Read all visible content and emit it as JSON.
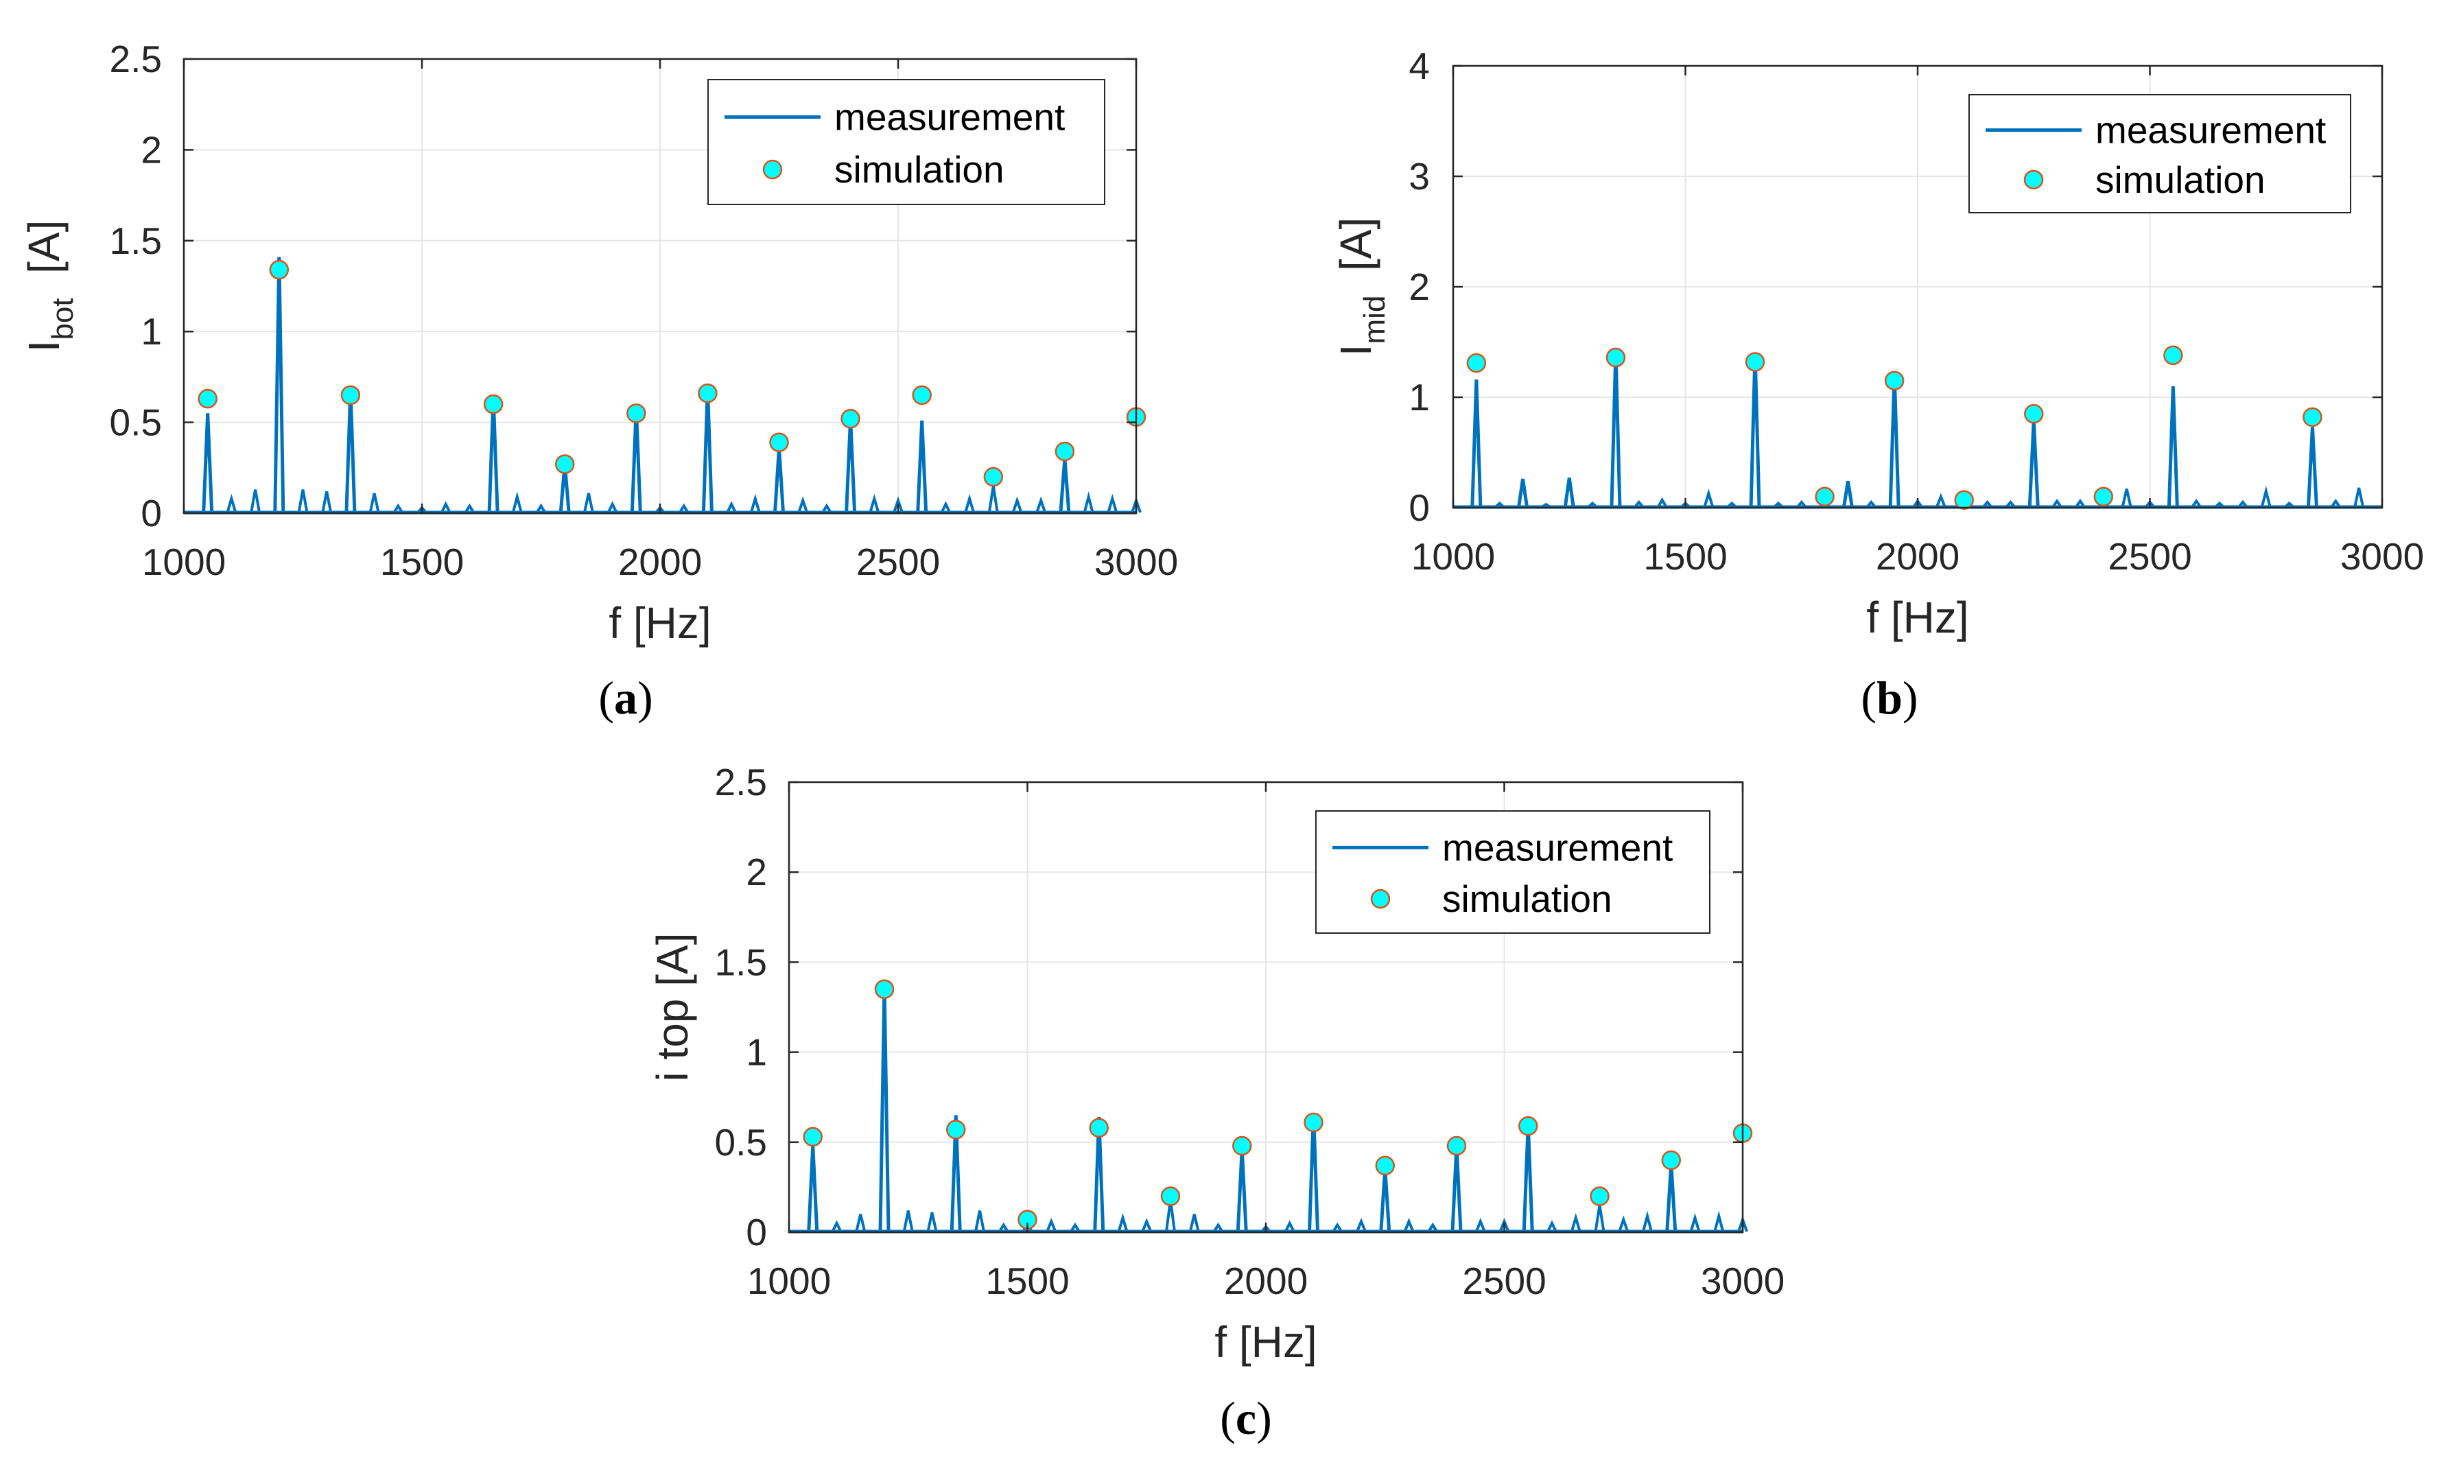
{
  "colors": {
    "measurement": "#0072BD",
    "marker_fill": "#00FFFF",
    "marker_edge": "#D95319",
    "grid": "#E6E6E6",
    "axis": "#262626"
  },
  "chart_data": [
    {
      "id": "a",
      "type": "line",
      "caption_label": "a",
      "ylabel_main": "I",
      "ylabel_sub": "bot",
      "ylabel_unit": "[A]",
      "xlabel": "f [Hz]",
      "xlim": [
        1000,
        3000
      ],
      "ylim": [
        0,
        2.5
      ],
      "xticks": [
        1000,
        1500,
        2000,
        2500,
        3000
      ],
      "yticks": [
        0,
        0.5,
        1,
        1.5,
        2,
        2.5
      ],
      "ytick_labels": [
        "0",
        "0.5",
        "1",
        "1.5",
        "2",
        "2.5"
      ],
      "grid": true,
      "legend": {
        "position": "top-right",
        "entries": [
          "measurement",
          "simulation"
        ]
      },
      "series": [
        {
          "name": "measurement",
          "kind": "stem",
          "x": [
            1050,
            1100,
            1150,
            1200,
            1250,
            1300,
            1350,
            1400,
            1450,
            1500,
            1550,
            1600,
            1650,
            1700,
            1750,
            1800,
            1850,
            1900,
            1950,
            2000,
            2050,
            2100,
            2150,
            2200,
            2250,
            2300,
            2350,
            2400,
            2450,
            2500,
            2550,
            2600,
            2650,
            2700,
            2750,
            2800,
            2850,
            2900,
            2950,
            3000
          ],
          "y": [
            0.55,
            0.08,
            0.13,
            1.41,
            0.13,
            0.12,
            0.68,
            0.11,
            0.04,
            0.03,
            0.05,
            0.04,
            0.64,
            0.09,
            0.04,
            0.27,
            0.11,
            0.05,
            0.58,
            0.03,
            0.04,
            0.69,
            0.05,
            0.08,
            0.36,
            0.07,
            0.04,
            0.52,
            0.08,
            0.07,
            0.51,
            0.05,
            0.08,
            0.15,
            0.07,
            0.07,
            0.3,
            0.09,
            0.08,
            0.07
          ]
        },
        {
          "name": "simulation",
          "kind": "marker",
          "x": [
            1050,
            1200,
            1350,
            1650,
            1800,
            1950,
            2100,
            2250,
            2400,
            2550,
            2700,
            2850,
            3000
          ],
          "y": [
            0.63,
            1.34,
            0.65,
            0.6,
            0.27,
            0.55,
            0.66,
            0.39,
            0.52,
            0.65,
            0.2,
            0.34,
            0.53
          ]
        }
      ]
    },
    {
      "id": "b",
      "type": "line",
      "caption_label": "b",
      "ylabel_main": "I",
      "ylabel_sub": "mid",
      "ylabel_unit": "[A]",
      "xlabel": "f [Hz]",
      "xlim": [
        1000,
        3000
      ],
      "ylim": [
        0,
        4
      ],
      "xticks": [
        1000,
        1500,
        2000,
        2500,
        3000
      ],
      "yticks": [
        0,
        1,
        2,
        3,
        4
      ],
      "ytick_labels": [
        "0",
        "1",
        "2",
        "3",
        "4"
      ],
      "grid": true,
      "legend": {
        "position": "top-right",
        "entries": [
          "measurement",
          "simulation"
        ]
      },
      "series": [
        {
          "name": "measurement",
          "kind": "stem",
          "x": [
            1050,
            1100,
            1150,
            1200,
            1250,
            1300,
            1350,
            1400,
            1450,
            1500,
            1550,
            1600,
            1650,
            1700,
            1750,
            1800,
            1850,
            1900,
            1950,
            2000,
            2050,
            2100,
            2150,
            2200,
            2250,
            2300,
            2350,
            2400,
            2450,
            2500,
            2550,
            2600,
            2650,
            2700,
            2750,
            2800,
            2850,
            2900,
            2950
          ],
          "y": [
            1.16,
            0.04,
            0.26,
            0.03,
            0.27,
            0.04,
            1.41,
            0.05,
            0.07,
            0.04,
            0.13,
            0.04,
            1.4,
            0.04,
            0.05,
            0.05,
            0.24,
            0.05,
            1.2,
            0.06,
            0.1,
            0.04,
            0.05,
            0.05,
            0.79,
            0.06,
            0.06,
            0.06,
            0.17,
            0.05,
            1.1,
            0.06,
            0.04,
            0.05,
            0.15,
            0.04,
            0.73,
            0.06,
            0.18
          ]
        },
        {
          "name": "simulation",
          "kind": "marker",
          "x": [
            1050,
            1350,
            1650,
            1800,
            1950,
            2100,
            2250,
            2400,
            2550,
            2850
          ],
          "y": [
            1.31,
            1.36,
            1.32,
            0.1,
            1.15,
            0.07,
            0.85,
            0.1,
            1.38,
            0.82
          ]
        }
      ]
    },
    {
      "id": "c",
      "type": "line",
      "caption_label": "c",
      "ylabel_main": "i top  [A]",
      "ylabel_sub": "",
      "ylabel_unit": "",
      "xlabel": "f [Hz]",
      "xlim": [
        1000,
        3000
      ],
      "ylim": [
        0,
        2.5
      ],
      "xticks": [
        1000,
        1500,
        2000,
        2500,
        3000
      ],
      "yticks": [
        0,
        0.5,
        1,
        1.5,
        2,
        2.5
      ],
      "ytick_labels": [
        "0",
        "0.5",
        "1",
        "1.5",
        "2",
        "2.5"
      ],
      "grid": true,
      "legend": {
        "position": "top-right",
        "entries": [
          "measurement",
          "simulation"
        ]
      },
      "series": [
        {
          "name": "measurement",
          "kind": "stem",
          "x": [
            1050,
            1100,
            1150,
            1200,
            1250,
            1300,
            1350,
            1400,
            1450,
            1500,
            1550,
            1600,
            1650,
            1700,
            1750,
            1800,
            1850,
            1900,
            1950,
            2000,
            2050,
            2100,
            2150,
            2200,
            2250,
            2300,
            2350,
            2400,
            2450,
            2500,
            2550,
            2600,
            2650,
            2700,
            2750,
            2800,
            2850,
            2900,
            2950,
            3000
          ],
          "y": [
            0.48,
            0.05,
            0.1,
            1.36,
            0.12,
            0.11,
            0.65,
            0.12,
            0.04,
            0.06,
            0.06,
            0.04,
            0.64,
            0.08,
            0.06,
            0.18,
            0.1,
            0.04,
            0.46,
            0.03,
            0.05,
            0.66,
            0.04,
            0.06,
            0.35,
            0.06,
            0.04,
            0.48,
            0.06,
            0.06,
            0.6,
            0.05,
            0.08,
            0.15,
            0.07,
            0.09,
            0.38,
            0.08,
            0.09,
            0.07
          ]
        },
        {
          "name": "simulation",
          "kind": "marker",
          "x": [
            1050,
            1200,
            1350,
            1500,
            1650,
            1800,
            1950,
            2100,
            2250,
            2400,
            2550,
            2700,
            2850,
            3000
          ],
          "y": [
            0.53,
            1.35,
            0.57,
            0.07,
            0.58,
            0.2,
            0.48,
            0.61,
            0.37,
            0.48,
            0.59,
            0.2,
            0.4,
            0.55
          ]
        }
      ]
    }
  ]
}
